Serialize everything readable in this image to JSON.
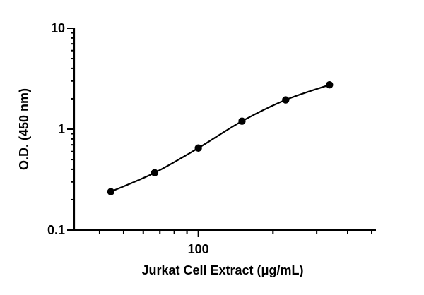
{
  "chart_data": {
    "type": "scatter",
    "xlabel": "Jurkat Cell  Extract (μg/mL)",
    "ylabel": "O.D. (450 nm)",
    "xscale": "log",
    "yscale": "log",
    "xlim": [
      31.6,
      520
    ],
    "ylim": [
      0.1,
      10
    ],
    "x_ticks": [
      {
        "value": 100,
        "label": "100"
      }
    ],
    "y_ticks": [
      {
        "value": 10,
        "label": "10"
      },
      {
        "value": 1,
        "label": "1"
      },
      {
        "value": 0.1,
        "label": "0.1"
      }
    ],
    "grid": false,
    "fit_line": true,
    "series": [
      {
        "x": [
          44.4,
          66.7,
          100,
          150,
          225,
          338
        ],
        "y": [
          0.24,
          0.37,
          0.65,
          1.2,
          1.95,
          2.75
        ]
      }
    ]
  }
}
